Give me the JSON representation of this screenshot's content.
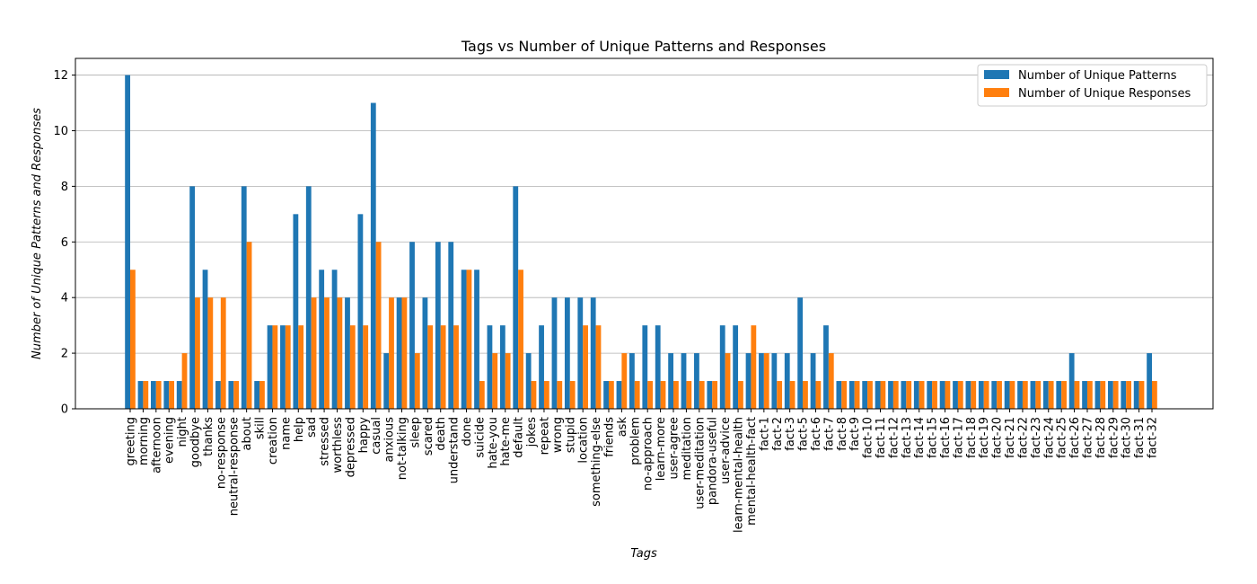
{
  "chart_data": {
    "type": "bar",
    "title": "Tags vs Number of Unique Patterns and Responses",
    "xlabel": "Tags",
    "ylabel": "Number of Unique Patterns and Responses",
    "ylim": [
      0,
      12.6
    ],
    "yticks": [
      0,
      2,
      4,
      6,
      8,
      10,
      12
    ],
    "grid": "y",
    "legend_position": "top-right",
    "categories": [
      "greeting",
      "morning",
      "afternoon",
      "evening",
      "night",
      "goodbye",
      "thanks",
      "no-response",
      "neutral-response",
      "about",
      "skill",
      "creation",
      "name",
      "help",
      "sad",
      "stressed",
      "worthless",
      "depressed",
      "happy",
      "casual",
      "anxious",
      "not-talking",
      "sleep",
      "scared",
      "death",
      "understand",
      "done",
      "suicide",
      "hate-you",
      "hate-me",
      "default",
      "jokes",
      "repeat",
      "wrong",
      "stupid",
      "location",
      "something-else",
      "friends",
      "ask",
      "problem",
      "no-approach",
      "learn-more",
      "user-agree",
      "meditation",
      "user-meditation",
      "pandora-useful",
      "user-advice",
      "learn-mental-health",
      "mental-health-fact",
      "fact-1",
      "fact-2",
      "fact-3",
      "fact-5",
      "fact-6",
      "fact-7",
      "fact-8",
      "fact-9",
      "fact-10",
      "fact-11",
      "fact-12",
      "fact-13",
      "fact-14",
      "fact-15",
      "fact-16",
      "fact-17",
      "fact-18",
      "fact-19",
      "fact-20",
      "fact-21",
      "fact-22",
      "fact-23",
      "fact-24",
      "fact-25",
      "fact-26",
      "fact-27",
      "fact-28",
      "fact-29",
      "fact-30",
      "fact-31",
      "fact-32"
    ],
    "series": [
      {
        "name": "Number of Unique Patterns",
        "color": "#1f77b4",
        "values": [
          12,
          1,
          1,
          1,
          1,
          8,
          5,
          1,
          1,
          8,
          1,
          3,
          3,
          7,
          8,
          5,
          5,
          4,
          7,
          11,
          2,
          4,
          6,
          4,
          6,
          6,
          5,
          5,
          3,
          3,
          8,
          2,
          3,
          4,
          4,
          4,
          4,
          1,
          1,
          2,
          3,
          3,
          2,
          2,
          2,
          1,
          3,
          3,
          2,
          2,
          2,
          2,
          4,
          2,
          3,
          1,
          1,
          1,
          1,
          1,
          1,
          1,
          1,
          1,
          1,
          1,
          1,
          1,
          1,
          1,
          1,
          1,
          1,
          2,
          1,
          1,
          1,
          1,
          1,
          2
        ]
      },
      {
        "name": "Number of Unique Responses",
        "color": "#ff7f0e",
        "values": [
          5,
          1,
          1,
          1,
          2,
          4,
          4,
          4,
          1,
          6,
          1,
          3,
          3,
          3,
          4,
          4,
          4,
          3,
          3,
          6,
          4,
          4,
          2,
          3,
          3,
          3,
          5,
          1,
          2,
          2,
          5,
          1,
          1,
          1,
          1,
          3,
          3,
          1,
          2,
          1,
          1,
          1,
          1,
          1,
          1,
          1,
          2,
          1,
          3,
          2,
          1,
          1,
          1,
          1,
          2,
          1,
          1,
          1,
          1,
          1,
          1,
          1,
          1,
          1,
          1,
          1,
          1,
          1,
          1,
          1,
          1,
          1,
          1,
          1,
          1,
          1,
          1,
          1,
          1,
          1
        ]
      }
    ]
  }
}
